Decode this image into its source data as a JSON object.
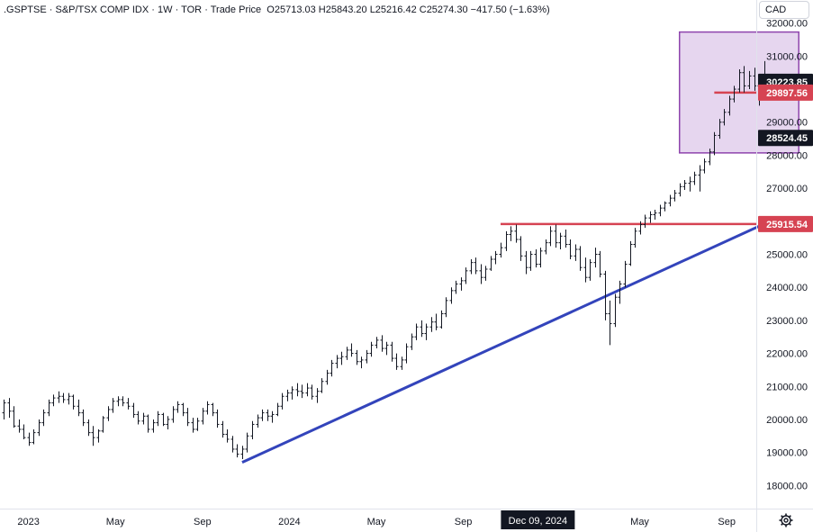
{
  "header": {
    "symbol": ".GSPTSE",
    "name": "S&P/TSX COMP IDX",
    "interval": "1W",
    "exchange": "TOR",
    "price_type": "Trade Price",
    "open": "O25713.03",
    "high": "H25843.20",
    "low": "L25216.42",
    "close": "C25274.30",
    "change": "−417.50 (−1.63%)",
    "separator": "·"
  },
  "currency_label": "CAD",
  "colors": {
    "bar": "#131722",
    "support_line": "#3344bb",
    "resistance_line": "#d64352",
    "box_fill": "#e6d6ef",
    "box_stroke": "#8e44ad",
    "label_dark": "#131722",
    "label_red": "#d64352"
  },
  "icons": {
    "settings": "gear-icon"
  },
  "chart_data": {
    "type": "ohlc",
    "title": ".GSPTSE · S&P/TSX COMP IDX · 1W · TOR",
    "ylim": [
      17300,
      32700
    ],
    "y_ticks": [
      "18000.00",
      "19000.00",
      "20000.00",
      "21000.00",
      "22000.00",
      "23000.00",
      "24000.00",
      "25000.00",
      "26000.00",
      "27000.00",
      "28000.00",
      "29000.00",
      "30000.00",
      "31000.00",
      "32000.00"
    ],
    "x_ticks": [
      {
        "label": "2023",
        "week": 5
      },
      {
        "label": "May",
        "week": 22.5
      },
      {
        "label": "Sep",
        "week": 40
      },
      {
        "label": "2024",
        "week": 57.5
      },
      {
        "label": "May",
        "week": 75
      },
      {
        "label": "Sep",
        "week": 92.5
      },
      {
        "label": "May",
        "week": 128
      },
      {
        "label": "Sep",
        "week": 145.5
      }
    ],
    "crosshair_x_label": {
      "label": "Dec 09, 2024",
      "week": 107.5
    },
    "price_labels": [
      {
        "value": 30223.85,
        "text": "30223.85",
        "style": "dark"
      },
      {
        "value": 29897.56,
        "text": "29897.56",
        "style": "red"
      },
      {
        "value": 28524.45,
        "text": "28524.45",
        "style": "dark"
      },
      {
        "value": 25915.54,
        "text": "25915.54",
        "style": "red"
      }
    ],
    "horizontal_lines": [
      {
        "value": 25915.54,
        "x_start_week": 100
      },
      {
        "value": 29897.56,
        "x_start_week": 143
      }
    ],
    "trendline": {
      "from": {
        "week": 48,
        "value": 18700
      },
      "to": {
        "week": 152,
        "value": 25850
      }
    },
    "rectangle": {
      "from": {
        "week": 136,
        "value": 28070
      },
      "to": {
        "week": 160,
        "value": 31730
      }
    },
    "bars_weekly_ohlc": [
      [
        20200,
        20600,
        20000,
        20500
      ],
      [
        20500,
        20650,
        20050,
        20250
      ],
      [
        20250,
        20400,
        19750,
        19800
      ],
      [
        19800,
        20000,
        19600,
        19700
      ],
      [
        19700,
        19850,
        19400,
        19450
      ],
      [
        19450,
        19600,
        19200,
        19300
      ],
      [
        19300,
        19700,
        19250,
        19600
      ],
      [
        19600,
        20000,
        19500,
        19900
      ],
      [
        19900,
        20300,
        19800,
        20200
      ],
      [
        20200,
        20600,
        20100,
        20500
      ],
      [
        20500,
        20750,
        20400,
        20650
      ],
      [
        20650,
        20850,
        20500,
        20700
      ],
      [
        20700,
        20800,
        20500,
        20600
      ],
      [
        20600,
        20800,
        20450,
        20700
      ],
      [
        20700,
        20750,
        20300,
        20400
      ],
      [
        20400,
        20600,
        20100,
        20200
      ],
      [
        20200,
        20300,
        19800,
        19900
      ],
      [
        19900,
        20000,
        19500,
        19600
      ],
      [
        19600,
        19800,
        19200,
        19450
      ],
      [
        19450,
        19700,
        19300,
        19650
      ],
      [
        19650,
        20100,
        19600,
        20050
      ],
      [
        20050,
        20400,
        19950,
        20300
      ],
      [
        20300,
        20650,
        20200,
        20550
      ],
      [
        20550,
        20700,
        20400,
        20600
      ],
      [
        20600,
        20700,
        20400,
        20500
      ],
      [
        20500,
        20650,
        20300,
        20400
      ],
      [
        20400,
        20500,
        20050,
        20150
      ],
      [
        20150,
        20250,
        19850,
        19950
      ],
      [
        19950,
        20200,
        19850,
        20100
      ],
      [
        20100,
        20150,
        19600,
        19700
      ],
      [
        19700,
        20000,
        19600,
        19900
      ],
      [
        19900,
        20250,
        19800,
        20150
      ],
      [
        20150,
        20200,
        19800,
        19850
      ],
      [
        19850,
        20100,
        19700,
        20000
      ],
      [
        20000,
        20400,
        19900,
        20300
      ],
      [
        20300,
        20550,
        20200,
        20450
      ],
      [
        20450,
        20500,
        20100,
        20200
      ],
      [
        20200,
        20350,
        19800,
        19900
      ],
      [
        19900,
        20050,
        19600,
        19700
      ],
      [
        19700,
        20050,
        19650,
        19950
      ],
      [
        19950,
        20350,
        19850,
        20250
      ],
      [
        20250,
        20550,
        20150,
        20450
      ],
      [
        20450,
        20500,
        20100,
        20200
      ],
      [
        20200,
        20300,
        19750,
        19850
      ],
      [
        19850,
        19950,
        19450,
        19550
      ],
      [
        19550,
        19700,
        19300,
        19400
      ],
      [
        19400,
        19500,
        19000,
        19100
      ],
      [
        19100,
        19250,
        18850,
        18950
      ],
      [
        18950,
        19200,
        18800,
        19100
      ],
      [
        19100,
        19600,
        19000,
        19500
      ],
      [
        19500,
        19950,
        19400,
        19850
      ],
      [
        19850,
        20150,
        19750,
        20050
      ],
      [
        20050,
        20300,
        19950,
        20200
      ],
      [
        20200,
        20300,
        19950,
        20100
      ],
      [
        20100,
        20250,
        19900,
        20150
      ],
      [
        20150,
        20500,
        20100,
        20400
      ],
      [
        20400,
        20800,
        20300,
        20700
      ],
      [
        20700,
        20900,
        20550,
        20800
      ],
      [
        20800,
        21000,
        20600,
        20900
      ],
      [
        20900,
        21100,
        20700,
        20850
      ],
      [
        20850,
        21050,
        20650,
        20800
      ],
      [
        20800,
        21100,
        20700,
        20950
      ],
      [
        20950,
        21050,
        20600,
        20700
      ],
      [
        20700,
        20950,
        20500,
        20850
      ],
      [
        20850,
        21250,
        20800,
        21150
      ],
      [
        21150,
        21500,
        21050,
        21400
      ],
      [
        21400,
        21800,
        21300,
        21700
      ],
      [
        21700,
        21950,
        21550,
        21850
      ],
      [
        21850,
        22050,
        21650,
        21900
      ],
      [
        21900,
        22200,
        21800,
        22100
      ],
      [
        22100,
        22300,
        21900,
        22000
      ],
      [
        22000,
        22100,
        21650,
        21750
      ],
      [
        21750,
        21900,
        21550,
        21800
      ],
      [
        21800,
        22100,
        21700,
        22000
      ],
      [
        22000,
        22350,
        21900,
        22250
      ],
      [
        22250,
        22500,
        22150,
        22400
      ],
      [
        22400,
        22550,
        22050,
        22150
      ],
      [
        22150,
        22350,
        21950,
        22250
      ],
      [
        22250,
        22350,
        21750,
        21850
      ],
      [
        21850,
        22000,
        21500,
        21600
      ],
      [
        21600,
        21900,
        21500,
        21800
      ],
      [
        21800,
        22300,
        21700,
        22200
      ],
      [
        22200,
        22600,
        22100,
        22500
      ],
      [
        22500,
        22900,
        22400,
        22800
      ],
      [
        22800,
        23000,
        22500,
        22600
      ],
      [
        22600,
        22900,
        22400,
        22800
      ],
      [
        22800,
        23100,
        22650,
        22950
      ],
      [
        22950,
        23200,
        22700,
        22800
      ],
      [
        22800,
        23300,
        22750,
        23200
      ],
      [
        23200,
        23700,
        23100,
        23600
      ],
      [
        23600,
        24000,
        23500,
        23900
      ],
      [
        23900,
        24200,
        23800,
        24100
      ],
      [
        24100,
        24300,
        23900,
        24200
      ],
      [
        24200,
        24600,
        24100,
        24500
      ],
      [
        24500,
        24850,
        24400,
        24750
      ],
      [
        24750,
        24900,
        24400,
        24500
      ],
      [
        24500,
        24700,
        24100,
        24300
      ],
      [
        24300,
        24650,
        24200,
        24550
      ],
      [
        24550,
        24950,
        24500,
        24850
      ],
      [
        24850,
        25100,
        24700,
        25000
      ],
      [
        25000,
        25350,
        24900,
        25200
      ],
      [
        25200,
        25700,
        25100,
        25600
      ],
      [
        25600,
        25850,
        25400,
        25700
      ],
      [
        25700,
        25900,
        25350,
        25450
      ],
      [
        25450,
        25550,
        24800,
        24950
      ],
      [
        24950,
        25100,
        24400,
        24600
      ],
      [
        24600,
        25100,
        24500,
        25000
      ],
      [
        25000,
        25150,
        24600,
        24700
      ],
      [
        24700,
        25200,
        24600,
        25100
      ],
      [
        25100,
        25450,
        25000,
        25350
      ],
      [
        25350,
        25850,
        25250,
        25700
      ],
      [
        25700,
        25900,
        25200,
        25350
      ],
      [
        25350,
        25650,
        25150,
        25550
      ],
      [
        25550,
        25750,
        25200,
        25300
      ],
      [
        25300,
        25450,
        24850,
        24950
      ],
      [
        24950,
        25300,
        24800,
        25150
      ],
      [
        25150,
        25250,
        24500,
        24600
      ],
      [
        24600,
        24900,
        24150,
        24300
      ],
      [
        24300,
        24850,
        24200,
        24750
      ],
      [
        24750,
        25200,
        24600,
        25000
      ],
      [
        25000,
        25100,
        24300,
        24400
      ],
      [
        24400,
        24500,
        23000,
        23200
      ],
      [
        23200,
        23600,
        22250,
        22900
      ],
      [
        22900,
        23800,
        22800,
        23700
      ],
      [
        23700,
        24200,
        23500,
        24100
      ],
      [
        24100,
        24800,
        24000,
        24700
      ],
      [
        24700,
        25400,
        24650,
        25300
      ],
      [
        25300,
        25800,
        25200,
        25700
      ],
      [
        25700,
        26000,
        25600,
        25900
      ],
      [
        25900,
        26200,
        25800,
        26100
      ],
      [
        26100,
        26300,
        25950,
        26200
      ],
      [
        26200,
        26350,
        26050,
        26250
      ],
      [
        26250,
        26500,
        26150,
        26400
      ],
      [
        26400,
        26600,
        26300,
        26550
      ],
      [
        26550,
        26800,
        26450,
        26700
      ],
      [
        26700,
        26950,
        26600,
        26850
      ],
      [
        26850,
        27150,
        26750,
        27050
      ],
      [
        27050,
        27250,
        26950,
        27150
      ],
      [
        27150,
        27350,
        26900,
        27200
      ],
      [
        27200,
        27500,
        27100,
        27400
      ],
      [
        27400,
        27700,
        26900,
        27550
      ],
      [
        27550,
        27900,
        27450,
        27800
      ],
      [
        27800,
        28200,
        27700,
        28100
      ],
      [
        28100,
        28700,
        28000,
        28600
      ],
      [
        28600,
        29100,
        28500,
        29000
      ],
      [
        29000,
        29400,
        28900,
        29300
      ],
      [
        29300,
        29800,
        29200,
        29700
      ],
      [
        29700,
        30100,
        29600,
        30000
      ],
      [
        30000,
        30600,
        29900,
        30500
      ],
      [
        30500,
        30700,
        29900,
        30100
      ],
      [
        30100,
        30550,
        30000,
        30400
      ],
      [
        30400,
        30650,
        29950,
        30100
      ],
      [
        30100,
        30450,
        29500,
        30300
      ],
      [
        30300,
        30850,
        30100,
        30224
      ]
    ]
  }
}
